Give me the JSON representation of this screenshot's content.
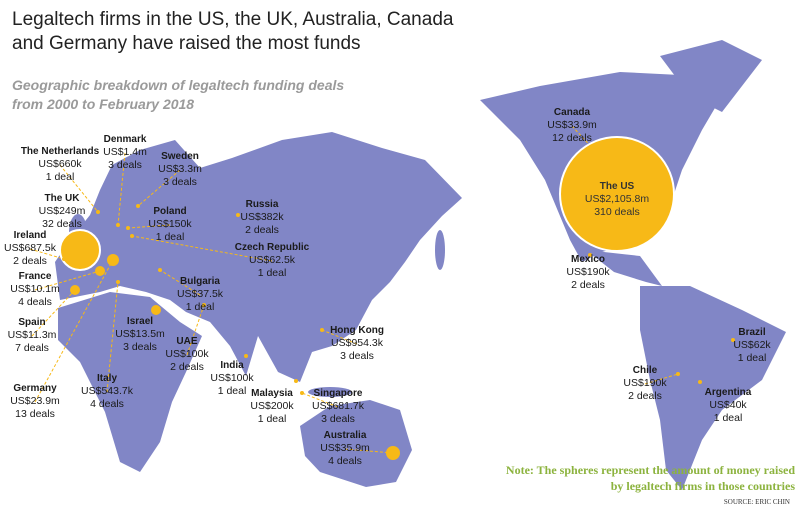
{
  "header": {
    "title": "Legaltech firms in the US, the UK, Australia, Canada and Germany have raised the most funds",
    "subtitle": "Geographic breakdown of legaltech funding deals from 2000 to February 2018"
  },
  "countries": [
    {
      "name": "The Netherlands",
      "amount": "US$660k",
      "deals": "1 deal"
    },
    {
      "name": "Denmark",
      "amount": "US$1.4m",
      "deals": "3 deals"
    },
    {
      "name": "Sweden",
      "amount": "US$3.3m",
      "deals": "3 deals"
    },
    {
      "name": "The UK",
      "amount": "US$249m",
      "deals": "32 deals"
    },
    {
      "name": "Poland",
      "amount": "US$150k",
      "deals": "1 deal"
    },
    {
      "name": "Russia",
      "amount": "US$382k",
      "deals": "2 deals"
    },
    {
      "name": "Ireland",
      "amount": "US$687.5k",
      "deals": "2 deals"
    },
    {
      "name": "Czech Republic",
      "amount": "US$62.5k",
      "deals": "1 deal"
    },
    {
      "name": "France",
      "amount": "US$10.1m",
      "deals": "4 deals"
    },
    {
      "name": "Bulgaria",
      "amount": "US$37.5k",
      "deals": "1 deal"
    },
    {
      "name": "Spain",
      "amount": "US$11.3m",
      "deals": "7 deals"
    },
    {
      "name": "Israel",
      "amount": "US$13.5m",
      "deals": "3 deals"
    },
    {
      "name": "UAE",
      "amount": "US$100k",
      "deals": "2 deals"
    },
    {
      "name": "Hong Kong",
      "amount": "US$954.3k",
      "deals": "3 deals"
    },
    {
      "name": "India",
      "amount": "US$100k",
      "deals": "1 deal"
    },
    {
      "name": "Germany",
      "amount": "US$23.9m",
      "deals": "13 deals"
    },
    {
      "name": "Italy",
      "amount": "US$543.7k",
      "deals": "4 deals"
    },
    {
      "name": "Malaysia",
      "amount": "US$200k",
      "deals": "1 deal"
    },
    {
      "name": "Singapore",
      "amount": "US$681.7k",
      "deals": "3 deals"
    },
    {
      "name": "Australia",
      "amount": "US$35.9m",
      "deals": "4 deals"
    },
    {
      "name": "Canada",
      "amount": "US$33.9m",
      "deals": "12 deals"
    },
    {
      "name": "The US",
      "amount": "US$2,105.8m",
      "deals": "310 deals"
    },
    {
      "name": "Mexico",
      "amount": "US$190k",
      "deals": "2 deals"
    },
    {
      "name": "Brazil",
      "amount": "US$62k",
      "deals": "1 deal"
    },
    {
      "name": "Chile",
      "amount": "US$190k",
      "deals": "2 deals"
    },
    {
      "name": "Argentina",
      "amount": "US$40k",
      "deals": "1 deal"
    }
  ],
  "note": "Note: The spheres represent the amount of money raised by legaltech firms in those countries",
  "source": "SOURCE: ERIC CHIN"
}
